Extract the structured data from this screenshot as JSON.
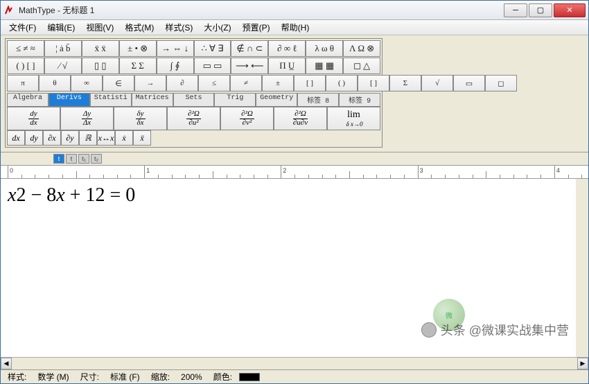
{
  "colors": {
    "accent": "#1f7dd6",
    "chrome": "#ece9d8",
    "border": "#888888",
    "close": "#c83030"
  },
  "title": "MathType - 无标题 1",
  "menus": [
    "文件(F)",
    "编辑(E)",
    "视图(V)",
    "格式(M)",
    "样式(S)",
    "大小(Z)",
    "预置(P)",
    "帮助(H)"
  ],
  "toolbar_row1": [
    "≤ ≠ ≈",
    "¦ ȧ b̄",
    "ẍ ẍ",
    "± • ⊗",
    "→ ⇔ ↓",
    "∴ ∀ ∃",
    "∉ ∩ ⊂",
    "∂ ∞ ℓ",
    "λ ω θ",
    "Λ Ω ⊗"
  ],
  "toolbar_row2": [
    "( ) [ ]",
    "⁄  √",
    "▯ ▯",
    "Σ Σ",
    "∫ ∮",
    "▭ ▭",
    "⟶ ⟵",
    "Π  U̲",
    "▦ ▦",
    "◻ △"
  ],
  "toolbar_row3": [
    "π",
    "θ",
    "∞",
    "∈",
    "→",
    "∂",
    "≤",
    "≠",
    "±",
    "[ ]",
    "( )",
    "[ ]",
    "Σ",
    "√",
    "▭",
    "◻"
  ],
  "tabs": [
    "Algebra",
    "Derivs",
    "Statisti",
    "Matrices",
    "Sets",
    "Trig",
    "Geometry",
    "标签 8",
    "标签 9"
  ],
  "active_tab_index": 1,
  "deriv_cells": [
    {
      "num": "dy",
      "den": "dx"
    },
    {
      "num": "Δy",
      "den": "Δx"
    },
    {
      "num": "δy",
      "den": "δx"
    },
    {
      "num": "∂²Ω",
      "den": "∂u²"
    },
    {
      "num": "∂²Ω",
      "den": "∂v²"
    },
    {
      "num": "∂²Ω",
      "den": "∂u∂v"
    },
    {
      "limit": "lim",
      "sub": "δ x→0"
    }
  ],
  "sym_cells": [
    "dx",
    "dy",
    "∂x",
    "∂y",
    "ℝ",
    "x↔x",
    "ẋ",
    "ẍ"
  ],
  "tags": [
    "t",
    "t",
    "t₁",
    "t₂"
  ],
  "ruler_marks": [
    0,
    1,
    2,
    3,
    4
  ],
  "equation_parts": [
    "x",
    "2 − 8",
    "x",
    " + 12 = 0"
  ],
  "status": {
    "style_label": "样式:",
    "style_value": "数学 (M)",
    "size_label": "尺寸:",
    "size_value": "标准 (F)",
    "zoom_label": "缩放:",
    "zoom_value": "200%",
    "color_label": "颜色:"
  },
  "watermark": "头条 @微课实战集中营"
}
